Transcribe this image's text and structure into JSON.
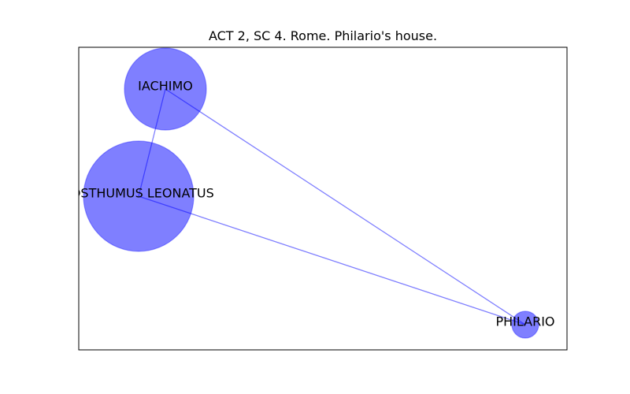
{
  "title": "ACT 2, SC 4. Rome. Philario's house.",
  "colors": {
    "node_fill": "#0000ff",
    "node_fill_opacity": 0.5,
    "edge_stroke": "#0000ff",
    "edge_opacity": 0.5,
    "frame": "#000000",
    "background": "#ffffff"
  },
  "nodes": [
    {
      "id": "iachimo",
      "label": "IACHIMO"
    },
    {
      "id": "posthumus",
      "label": "POSTHUMUS LEONATUS"
    },
    {
      "id": "philario",
      "label": "PHILARIO"
    }
  ],
  "edges": [
    {
      "source": "iachimo",
      "target": "posthumus"
    },
    {
      "source": "iachimo",
      "target": "philario"
    },
    {
      "source": "posthumus",
      "target": "philario"
    }
  ]
}
